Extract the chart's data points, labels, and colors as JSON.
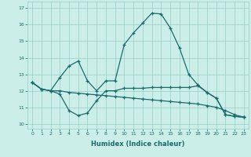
{
  "xlabel": "Humidex (Indice chaleur)",
  "background_color": "#cceee8",
  "grid_color": "#99ccc6",
  "line_color": "#1a6b6b",
  "x_ticks": [
    0,
    1,
    2,
    3,
    4,
    5,
    6,
    7,
    8,
    9,
    10,
    11,
    12,
    13,
    14,
    15,
    16,
    17,
    18,
    19,
    20,
    21,
    22,
    23
  ],
  "y_ticks": [
    10,
    11,
    12,
    13,
    14,
    15,
    16,
    17
  ],
  "ylim": [
    9.7,
    17.4
  ],
  "xlim": [
    -0.5,
    23.5
  ],
  "line1_x": [
    0,
    1,
    2,
    3,
    4,
    5,
    6,
    7,
    8,
    9,
    10,
    11,
    12,
    13,
    14,
    15,
    16,
    17,
    18,
    19,
    20,
    21,
    22,
    23
  ],
  "line1_y": [
    12.5,
    12.1,
    12.0,
    12.8,
    13.5,
    13.8,
    12.6,
    12.0,
    12.6,
    12.6,
    14.8,
    15.5,
    16.1,
    16.7,
    16.65,
    15.8,
    14.6,
    13.0,
    12.35,
    11.9,
    11.55,
    10.55,
    10.45,
    10.4
  ],
  "line2_x": [
    0,
    1,
    2,
    3,
    4,
    5,
    6,
    7,
    8,
    9,
    10,
    11,
    12,
    13,
    14,
    15,
    16,
    17,
    18,
    19,
    20,
    21,
    22,
    23
  ],
  "line2_y": [
    12.5,
    12.1,
    12.0,
    11.8,
    10.8,
    10.5,
    10.65,
    11.4,
    12.0,
    12.0,
    12.15,
    12.15,
    12.15,
    12.2,
    12.2,
    12.2,
    12.2,
    12.2,
    12.3,
    11.9,
    11.55,
    10.55,
    10.45,
    10.4
  ],
  "line3_x": [
    0,
    1,
    2,
    3,
    4,
    5,
    6,
    7,
    8,
    9,
    10,
    11,
    12,
    13,
    14,
    15,
    16,
    17,
    18,
    19,
    20,
    21,
    22,
    23
  ],
  "line3_y": [
    12.5,
    12.1,
    12.0,
    12.0,
    11.9,
    11.85,
    11.8,
    11.75,
    11.7,
    11.65,
    11.6,
    11.55,
    11.5,
    11.45,
    11.4,
    11.35,
    11.3,
    11.25,
    11.2,
    11.1,
    11.0,
    10.8,
    10.55,
    10.4
  ]
}
